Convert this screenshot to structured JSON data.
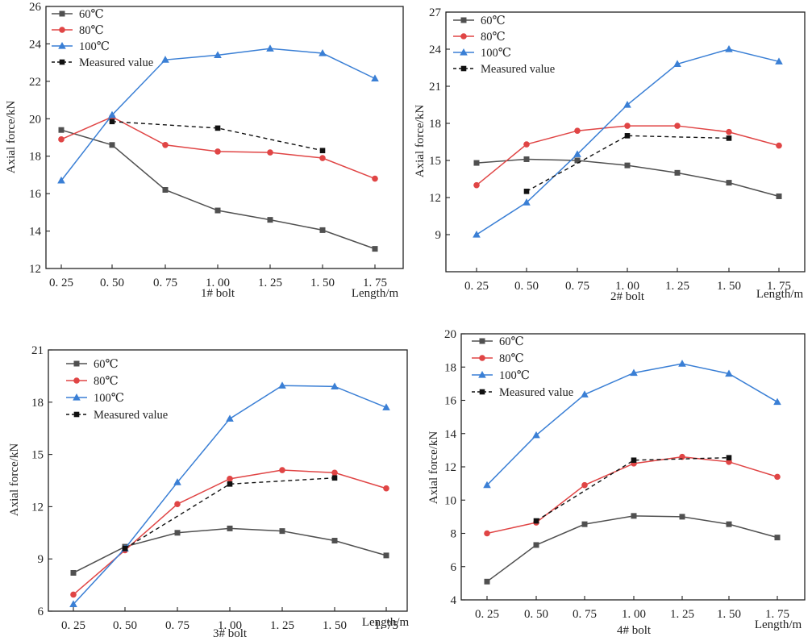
{
  "colors": {
    "60C": "#505050",
    "80C": "#e04545",
    "100C": "#3a7fd5",
    "measured": "#111111"
  },
  "chart_data": [
    {
      "type": "line",
      "xlabel": "1# bolt",
      "x_unit_label": "Length/m",
      "ylabel": "Axial force/kN",
      "x": [
        "0. 25",
        "0. 50",
        "0. 75",
        "1. 00",
        "1. 25",
        "1. 50",
        "1. 75"
      ],
      "ylim": [
        12,
        26
      ],
      "yticks": [
        12,
        14,
        16,
        18,
        20,
        22,
        24,
        26
      ],
      "legend_position": "top-left",
      "series": [
        {
          "name": "60℃",
          "values": [
            19.4,
            18.6,
            16.2,
            15.1,
            14.6,
            14.05,
            13.05
          ]
        },
        {
          "name": "80℃",
          "values": [
            18.9,
            20.1,
            18.6,
            18.25,
            18.2,
            17.9,
            16.8
          ]
        },
        {
          "name": "100℃",
          "values": [
            16.7,
            20.2,
            23.15,
            23.4,
            23.75,
            23.5,
            22.15
          ]
        },
        {
          "name": "Measured value",
          "values": [
            null,
            19.85,
            null,
            19.5,
            null,
            18.3,
            null
          ]
        }
      ]
    },
    {
      "type": "line",
      "xlabel": "2# bolt",
      "x_unit_label": "Length/m",
      "ylabel": "Axial force/kN",
      "x": [
        "0. 25",
        "0. 50",
        "0. 75",
        "1. 00",
        "1. 25",
        "1. 50",
        "1. 75"
      ],
      "ylim": [
        6,
        27
      ],
      "yticks": [
        9,
        12,
        15,
        18,
        21,
        24,
        27
      ],
      "legend_position": "top-left",
      "series": [
        {
          "name": "60℃",
          "values": [
            14.8,
            15.1,
            15.0,
            14.6,
            14.0,
            13.2,
            12.1
          ]
        },
        {
          "name": "80℃",
          "values": [
            13.0,
            16.3,
            17.4,
            17.8,
            17.8,
            17.3,
            16.2
          ]
        },
        {
          "name": "100℃",
          "values": [
            9.0,
            11.6,
            15.5,
            19.5,
            22.8,
            24.0,
            23.0
          ]
        },
        {
          "name": "Measured value",
          "values": [
            null,
            12.5,
            null,
            17.0,
            null,
            16.8,
            null
          ]
        }
      ]
    },
    {
      "type": "line",
      "xlabel": "3# bolt",
      "x_unit_label": "Length/m",
      "ylabel": "Axial force/kN",
      "x": [
        "0. 25",
        "0. 50",
        "0. 75",
        "1. 00",
        "1. 25",
        "1. 50",
        "1. 75"
      ],
      "ylim": [
        6,
        21
      ],
      "yticks": [
        6,
        9,
        12,
        15,
        18,
        21
      ],
      "legend_position": "top-left",
      "series": [
        {
          "name": "60℃",
          "values": [
            8.2,
            9.7,
            10.5,
            10.75,
            10.6,
            10.05,
            9.2
          ]
        },
        {
          "name": "80℃",
          "values": [
            6.95,
            9.5,
            12.15,
            13.6,
            14.1,
            13.95,
            13.05
          ]
        },
        {
          "name": "100℃",
          "values": [
            6.4,
            9.6,
            13.4,
            17.05,
            18.95,
            18.9,
            17.7
          ]
        },
        {
          "name": "Measured value",
          "values": [
            null,
            9.6,
            null,
            13.3,
            null,
            13.65,
            null
          ]
        }
      ]
    },
    {
      "type": "line",
      "xlabel": "4# bolt",
      "x_unit_label": "Length/m",
      "ylabel": "Axial force/kN",
      "x": [
        "0. 25",
        "0. 50",
        "0. 75",
        "1. 00",
        "1. 25",
        "1. 50",
        "1. 75"
      ],
      "ylim": [
        4,
        20
      ],
      "yticks": [
        4,
        6,
        8,
        10,
        12,
        14,
        16,
        18,
        20
      ],
      "legend_position": "top-left",
      "series": [
        {
          "name": "60℃",
          "values": [
            5.1,
            7.3,
            8.55,
            9.05,
            9.0,
            8.55,
            7.75
          ]
        },
        {
          "name": "80℃",
          "values": [
            8.0,
            8.65,
            10.9,
            12.2,
            12.6,
            12.3,
            11.4
          ]
        },
        {
          "name": "100℃",
          "values": [
            10.9,
            13.9,
            16.35,
            17.65,
            18.2,
            17.6,
            15.9
          ]
        },
        {
          "name": "Measured value",
          "values": [
            null,
            8.75,
            null,
            12.4,
            null,
            12.55,
            null
          ]
        }
      ]
    }
  ]
}
